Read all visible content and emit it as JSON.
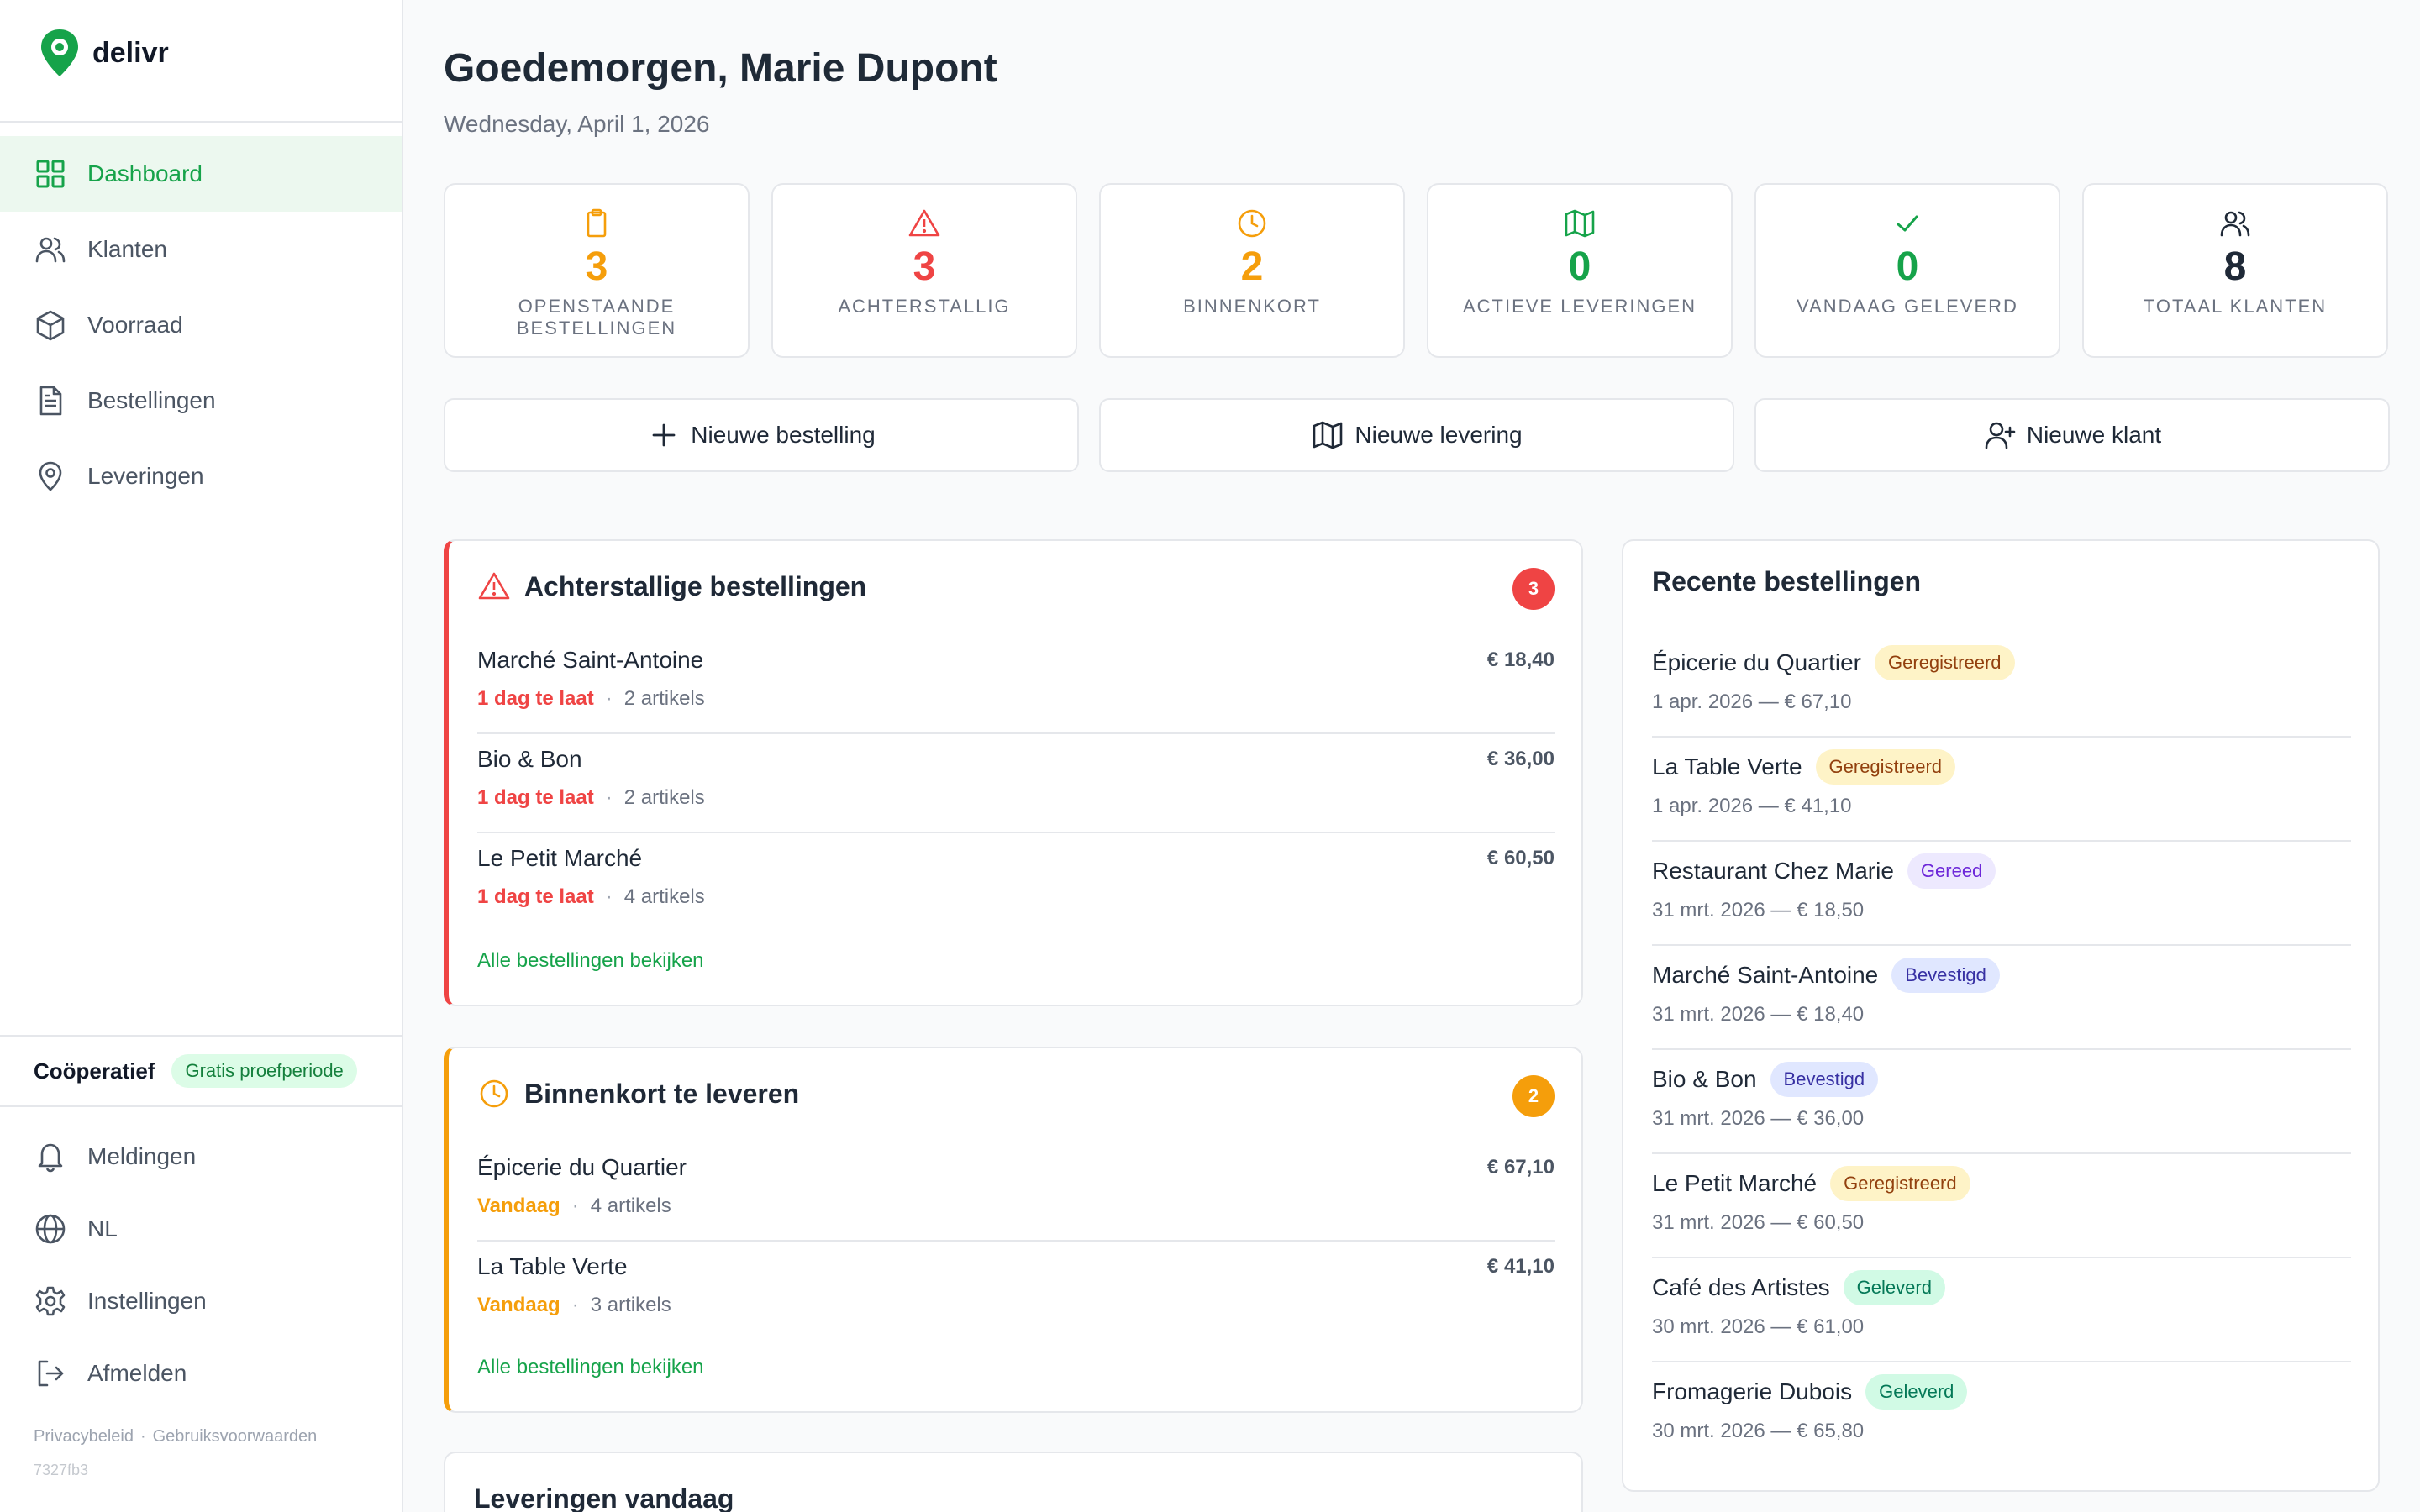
{
  "brand": {
    "name": "delivr",
    "color": "#16a34a"
  },
  "sidebar": {
    "items": [
      {
        "label": "Dashboard",
        "icon": "grid-icon",
        "active": true
      },
      {
        "label": "Klanten",
        "icon": "users-icon"
      },
      {
        "label": "Voorraad",
        "icon": "box-icon"
      },
      {
        "label": "Bestellingen",
        "icon": "document-icon"
      },
      {
        "label": "Leveringen",
        "icon": "map-pin-icon"
      }
    ],
    "plan_name": "Coöperatief",
    "trial_label": "Gratis proefperiode",
    "bottom_items": [
      {
        "label": "Meldingen",
        "icon": "bell-icon"
      },
      {
        "label": "NL",
        "icon": "globe-icon"
      },
      {
        "label": "Instellingen",
        "icon": "gear-icon"
      },
      {
        "label": "Afmelden",
        "icon": "logout-icon"
      }
    ],
    "privacy": "Privacybeleid",
    "terms": "Gebruiksvoorwaarden",
    "version": "7327fb3"
  },
  "header": {
    "greeting": "Goedemorgen, Marie Dupont",
    "date": "Wednesday, April 1, 2026"
  },
  "stats": [
    {
      "value": "3",
      "label": "OPENSTAANDE BESTELLINGEN",
      "icon": "clipboard-icon",
      "color": "#f59e0b"
    },
    {
      "value": "3",
      "label": "ACHTERSTALLIG",
      "icon": "warning-icon",
      "color": "#ef4444"
    },
    {
      "value": "2",
      "label": "BINNENKORT",
      "icon": "clock-icon",
      "color": "#f59e0b"
    },
    {
      "value": "0",
      "label": "ACTIEVE LEVERINGEN",
      "icon": "map-icon",
      "color": "#16a34a"
    },
    {
      "value": "0",
      "label": "VANDAAG GELEVERD",
      "icon": "check-icon",
      "color": "#16a34a"
    },
    {
      "value": "8",
      "label": "TOTAAL KLANTEN",
      "icon": "users-icon",
      "color": "#1f2937"
    }
  ],
  "actions": {
    "new_order": "Nieuwe bestelling",
    "new_delivery": "Nieuwe levering",
    "new_customer": "Nieuwe klant"
  },
  "overdue": {
    "title": "Achterstallige bestellingen",
    "count": "3",
    "view_all": "Alle bestellingen bekijken",
    "items": [
      {
        "customer": "Marché Saint-Antoine",
        "amount": "€ 18,40",
        "status": "1 dag te laat",
        "articles": "2 artikels"
      },
      {
        "customer": "Bio & Bon",
        "amount": "€ 36,00",
        "status": "1 dag te laat",
        "articles": "2 artikels"
      },
      {
        "customer": "Le Petit Marché",
        "amount": "€ 60,50",
        "status": "1 dag te laat",
        "articles": "4 artikels"
      }
    ]
  },
  "upcoming": {
    "title": "Binnenkort te leveren",
    "count": "2",
    "view_all": "Alle bestellingen bekijken",
    "items": [
      {
        "customer": "Épicerie du Quartier",
        "amount": "€ 67,10",
        "status": "Vandaag",
        "articles": "4 artikels"
      },
      {
        "customer": "La Table Verte",
        "amount": "€ 41,10",
        "status": "Vandaag",
        "articles": "3 artikels"
      }
    ]
  },
  "deliveries_today": {
    "title": "Leveringen vandaag"
  },
  "recent": {
    "title": "Recente bestellingen",
    "items": [
      {
        "customer": "Épicerie du Quartier",
        "status": "Geregistreerd",
        "kind": "registered",
        "meta": "1 apr. 2026 — € 67,10"
      },
      {
        "customer": "La Table Verte",
        "status": "Geregistreerd",
        "kind": "registered",
        "meta": "1 apr. 2026 — € 41,10"
      },
      {
        "customer": "Restaurant Chez Marie",
        "status": "Gereed",
        "kind": "ready",
        "meta": "31 mrt. 2026 — € 18,50"
      },
      {
        "customer": "Marché Saint-Antoine",
        "status": "Bevestigd",
        "kind": "confirmed",
        "meta": "31 mrt. 2026 — € 18,40"
      },
      {
        "customer": "Bio & Bon",
        "status": "Bevestigd",
        "kind": "confirmed",
        "meta": "31 mrt. 2026 — € 36,00"
      },
      {
        "customer": "Le Petit Marché",
        "status": "Geregistreerd",
        "kind": "registered",
        "meta": "31 mrt. 2026 — € 60,50"
      },
      {
        "customer": "Café des Artistes",
        "status": "Geleverd",
        "kind": "delivered",
        "meta": "30 mrt. 2026 — € 61,00"
      },
      {
        "customer": "Fromagerie Dubois",
        "status": "Geleverd",
        "kind": "delivered",
        "meta": "30 mrt. 2026 — € 65,80"
      }
    ]
  }
}
